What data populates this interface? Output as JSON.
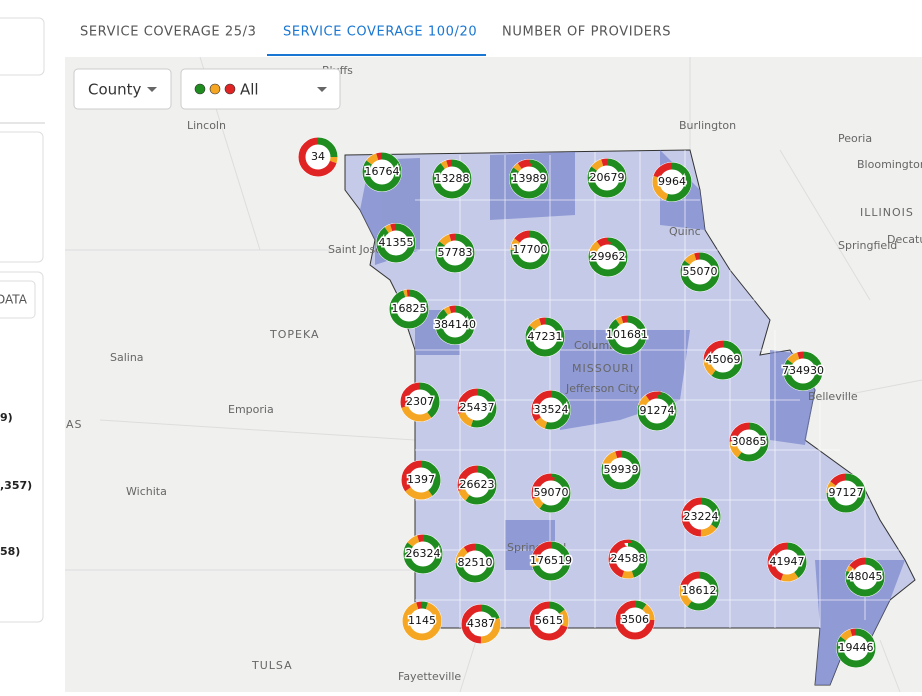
{
  "tabs": [
    "SERVICE COVERAGE 25/3",
    "SERVICE COVERAGE 100/20",
    "NUMBER OF PROVIDERS"
  ],
  "active_tab": 1,
  "filters": {
    "area": "County",
    "status": "All"
  },
  "side_panel": {
    "button": "DATA",
    "lines": [
      "9)",
      ",357)",
      "58)"
    ]
  },
  "map_labels": [
    "Bluffs",
    "Lincoln",
    "Burlington",
    "Peoria",
    "Bloomington",
    "ILLINOIS",
    "Springfield",
    "Decatu",
    "Saint Jose",
    "Quinc",
    "TOPEKA",
    "Salina",
    "Emporia",
    "AS",
    "Wichita",
    "MISSOURI",
    "Jefferson City",
    "Columbia",
    "Belleville",
    "Springfield",
    "TULSA",
    "Fayetteville"
  ],
  "markers": [
    {
      "label": "34",
      "coverage": [
        25,
        5,
        70
      ]
    },
    {
      "label": "16764",
      "coverage": [
        85,
        10,
        5
      ]
    },
    {
      "label": "13288",
      "coverage": [
        90,
        5,
        5
      ]
    },
    {
      "label": "13989",
      "coverage": [
        85,
        5,
        10
      ]
    },
    {
      "label": "20679",
      "coverage": [
        85,
        10,
        5
      ]
    },
    {
      "label": "9964",
      "coverage": [
        55,
        25,
        20
      ]
    },
    {
      "label": "41355",
      "coverage": [
        90,
        5,
        5
      ]
    },
    {
      "label": "57783",
      "coverage": [
        85,
        10,
        5
      ]
    },
    {
      "label": "17700",
      "coverage": [
        75,
        10,
        15
      ]
    },
    {
      "label": "29962",
      "coverage": [
        80,
        10,
        10
      ]
    },
    {
      "label": "55070",
      "coverage": [
        85,
        10,
        5
      ]
    },
    {
      "label": "16825",
      "coverage": [
        95,
        3,
        2
      ]
    },
    {
      "label": "384140",
      "coverage": [
        90,
        5,
        5
      ]
    },
    {
      "label": "47231",
      "coverage": [
        85,
        10,
        5
      ]
    },
    {
      "label": "101681",
      "coverage": [
        90,
        5,
        5
      ]
    },
    {
      "label": "45069",
      "coverage": [
        60,
        15,
        25
      ]
    },
    {
      "label": "734930",
      "coverage": [
        85,
        10,
        5
      ]
    },
    {
      "label": "2307",
      "coverage": [
        40,
        30,
        30
      ]
    },
    {
      "label": "25437",
      "coverage": [
        55,
        15,
        30
      ]
    },
    {
      "label": "33524",
      "coverage": [
        55,
        10,
        35
      ]
    },
    {
      "label": "91274",
      "coverage": [
        80,
        10,
        10
      ]
    },
    {
      "label": "30865",
      "coverage": [
        60,
        15,
        25
      ]
    },
    {
      "label": "1397",
      "coverage": [
        40,
        25,
        35
      ]
    },
    {
      "label": "26623",
      "coverage": [
        60,
        10,
        30
      ]
    },
    {
      "label": "59939",
      "coverage": [
        80,
        15,
        5
      ]
    },
    {
      "label": "59070",
      "coverage": [
        60,
        10,
        30
      ]
    },
    {
      "label": "97127",
      "coverage": [
        75,
        10,
        15
      ]
    },
    {
      "label": "23224",
      "coverage": [
        35,
        15,
        50
      ]
    },
    {
      "label": "26324",
      "coverage": [
        85,
        10,
        5
      ]
    },
    {
      "label": "82510",
      "coverage": [
        75,
        15,
        10
      ]
    },
    {
      "label": "176519",
      "coverage": [
        70,
        10,
        20
      ]
    },
    {
      "label": "24588",
      "coverage": [
        45,
        10,
        45
      ]
    },
    {
      "label": "41947",
      "coverage": [
        40,
        15,
        45
      ]
    },
    {
      "label": "18612",
      "coverage": [
        60,
        20,
        20
      ]
    },
    {
      "label": "48045",
      "coverage": [
        80,
        5,
        15
      ]
    },
    {
      "label": "1145",
      "coverage": [
        5,
        90,
        5
      ]
    },
    {
      "label": "4387",
      "coverage": [
        20,
        30,
        50
      ]
    },
    {
      "label": "5615",
      "coverage": [
        15,
        15,
        70
      ]
    },
    {
      "label": "3506",
      "coverage": [
        10,
        15,
        75
      ]
    },
    {
      "label": "19446",
      "coverage": [
        85,
        10,
        5
      ]
    }
  ]
}
